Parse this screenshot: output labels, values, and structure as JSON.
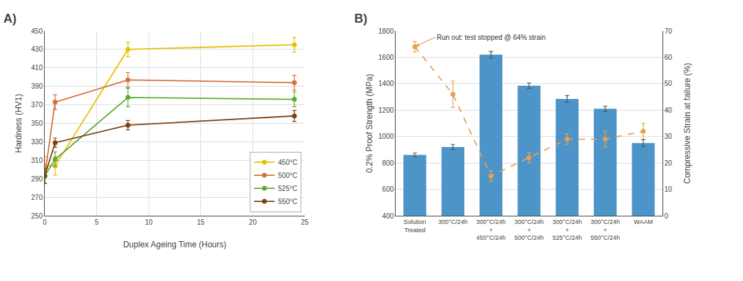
{
  "chart_data": [
    {
      "type": "line",
      "title": "A)",
      "xlabel": "Duplex Ageing Time (Hours)",
      "ylabel": "Hardness (HV1)",
      "xlim": [
        0,
        25
      ],
      "xticks": [
        0,
        5,
        10,
        15,
        20,
        25
      ],
      "ylim": [
        250,
        450
      ],
      "yticks": [
        250,
        270,
        290,
        310,
        330,
        350,
        370,
        390,
        410,
        430,
        450
      ],
      "grid": true,
      "legend": "lower right",
      "marker": "circle",
      "line_style": "solid",
      "series": [
        {
          "name": "450°C",
          "color": "#e8c000",
          "x": [
            0,
            1,
            8,
            24
          ],
          "values": [
            304,
            304,
            430,
            435
          ],
          "errors": [
            10,
            10,
            8,
            8
          ]
        },
        {
          "name": "500°C",
          "color": "#d4703a",
          "x": [
            0,
            1,
            8,
            24
          ],
          "values": [
            293,
            373,
            397,
            394
          ],
          "errors": [
            8,
            8,
            8,
            8
          ]
        },
        {
          "name": "525°C",
          "color": "#5aab34",
          "x": [
            0,
            1,
            8,
            24
          ],
          "values": [
            293,
            311,
            378,
            376
          ],
          "errors": [
            8,
            8,
            10,
            8
          ]
        },
        {
          "name": "550°C",
          "color": "#7b4214",
          "x": [
            0,
            1,
            8,
            24
          ],
          "values": [
            293,
            329,
            348,
            358
          ],
          "errors": [
            8,
            5,
            5,
            6
          ]
        }
      ]
    },
    {
      "type": "bar",
      "title": "B)",
      "ylabel": "0.2% Proof Strength (MPa)",
      "y2label": "Compressive Strain at failure (%)",
      "categories": [
        "Solution\nTreated",
        "300°C/24h",
        "300°C/24h\n+\n450°C/24h",
        "300°C/24h\n+\n500°C/24h",
        "300°C/24h\n+\n525°C/24h",
        "300°C/24h\n+\n550°C/24h",
        "WAAM"
      ],
      "ylim": [
        400,
        1800
      ],
      "yticks": [
        400,
        600,
        800,
        1000,
        1200,
        1400,
        1600,
        1800
      ],
      "y2lim": [
        0,
        70
      ],
      "y2ticks": [
        0,
        10,
        20,
        30,
        40,
        50,
        60,
        70
      ],
      "grid": "y",
      "series": [
        {
          "type": "bar",
          "color": "#4d94c8",
          "values": [
            860,
            920,
            1620,
            1385,
            1285,
            1210,
            950
          ],
          "errors": [
            15,
            20,
            25,
            20,
            25,
            20,
            25
          ]
        },
        {
          "type": "line",
          "axis": "y2",
          "color": "#e8a050",
          "line_style": "dashed",
          "marker": "circle",
          "values": [
            64,
            46,
            15,
            22,
            29,
            29,
            32
          ],
          "errors": [
            2,
            5,
            2,
            2,
            2,
            3,
            3
          ]
        }
      ],
      "annotations": [
        {
          "text": "Run out: test stopped @ 64% strain",
          "x": "Solution\nTreated",
          "y": 64,
          "axis": "y2"
        }
      ]
    }
  ]
}
